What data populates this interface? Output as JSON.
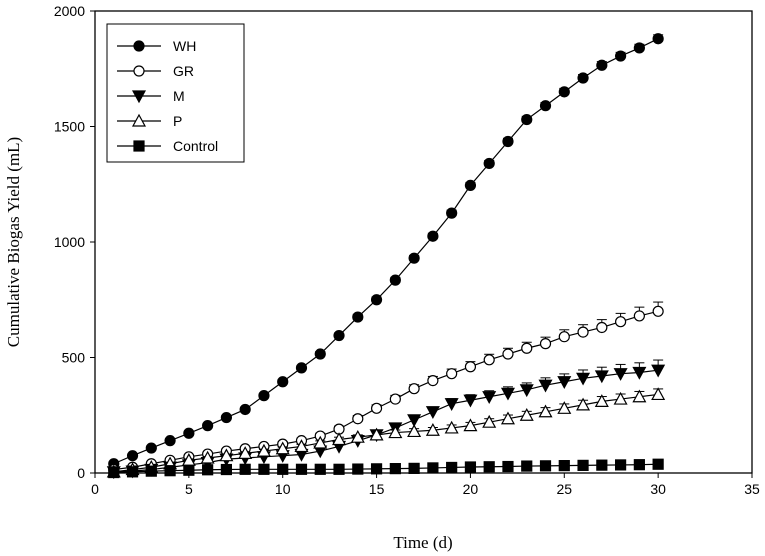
{
  "chart_data": {
    "type": "line",
    "title": "",
    "xlabel": "Time (d)",
    "ylabel": "Cumulative Biogas Yield (mL)",
    "xlim": [
      0,
      35
    ],
    "ylim": [
      0,
      2000
    ],
    "xticks": [
      0,
      5,
      10,
      15,
      20,
      25,
      30,
      35
    ],
    "yticks": [
      0,
      500,
      1000,
      1500,
      2000
    ],
    "grid": false,
    "legend_position": "top-left",
    "x": [
      1,
      2,
      3,
      4,
      5,
      6,
      7,
      8,
      9,
      10,
      11,
      12,
      13,
      14,
      15,
      16,
      17,
      18,
      19,
      20,
      21,
      22,
      23,
      24,
      25,
      26,
      27,
      28,
      29,
      30
    ],
    "series": [
      {
        "name": "WH",
        "marker": "filled-circle",
        "values": [
          40,
          75,
          108,
          140,
          172,
          205,
          240,
          275,
          335,
          395,
          455,
          515,
          595,
          675,
          750,
          835,
          930,
          1025,
          1125,
          1245,
          1340,
          1435,
          1530,
          1590,
          1650,
          1710,
          1765,
          1805,
          1840,
          1880
        ],
        "errors": [
          8,
          8,
          8,
          8,
          8,
          9,
          9,
          9,
          10,
          10,
          10,
          11,
          11,
          12,
          12,
          12,
          12,
          13,
          13,
          13,
          13,
          14,
          14,
          14,
          15,
          15,
          16,
          16,
          16,
          17
        ]
      },
      {
        "name": "GR",
        "marker": "open-circle",
        "values": [
          15,
          25,
          40,
          55,
          70,
          82,
          95,
          105,
          115,
          125,
          140,
          160,
          190,
          235,
          280,
          320,
          365,
          400,
          430,
          460,
          490,
          515,
          540,
          560,
          590,
          610,
          630,
          655,
          680,
          700
        ],
        "errors": [
          5,
          5,
          6,
          6,
          7,
          7,
          8,
          8,
          9,
          10,
          11,
          12,
          13,
          14,
          15,
          16,
          17,
          18,
          20,
          22,
          24,
          25,
          26,
          28,
          30,
          32,
          34,
          36,
          38,
          40
        ]
      },
      {
        "name": "M",
        "marker": "filled-triangle-down",
        "values": [
          5,
          8,
          15,
          25,
          35,
          45,
          60,
          65,
          70,
          75,
          80,
          95,
          115,
          140,
          165,
          195,
          230,
          265,
          300,
          315,
          330,
          345,
          360,
          380,
          395,
          410,
          420,
          430,
          435,
          445
        ],
        "errors": [
          5,
          5,
          6,
          6,
          7,
          7,
          8,
          9,
          10,
          10,
          11,
          12,
          13,
          14,
          15,
          16,
          18,
          20,
          22,
          24,
          26,
          28,
          30,
          32,
          34,
          36,
          38,
          40,
          42,
          44
        ]
      },
      {
        "name": "P",
        "marker": "open-triangle-up",
        "values": [
          5,
          15,
          25,
          40,
          55,
          65,
          75,
          85,
          95,
          105,
          115,
          130,
          145,
          155,
          165,
          175,
          180,
          185,
          195,
          205,
          220,
          235,
          250,
          265,
          280,
          295,
          310,
          320,
          330,
          340
        ],
        "errors": [
          4,
          4,
          5,
          5,
          6,
          6,
          7,
          7,
          8,
          8,
          9,
          9,
          10,
          10,
          11,
          11,
          12,
          12,
          13,
          14,
          15,
          16,
          17,
          18,
          19,
          20,
          21,
          22,
          23,
          24
        ]
      },
      {
        "name": "Control",
        "marker": "filled-square",
        "values": [
          2,
          5,
          8,
          10,
          12,
          14,
          15,
          16,
          16,
          16,
          16,
          16,
          16,
          17,
          18,
          19,
          20,
          22,
          24,
          26,
          27,
          28,
          30,
          31,
          32,
          33,
          34,
          35,
          36,
          38
        ],
        "errors": [
          2,
          2,
          2,
          2,
          3,
          3,
          3,
          3,
          3,
          3,
          3,
          3,
          3,
          3,
          3,
          3,
          3,
          3,
          4,
          4,
          4,
          4,
          4,
          4,
          4,
          4,
          4,
          5,
          5,
          5
        ]
      }
    ]
  }
}
